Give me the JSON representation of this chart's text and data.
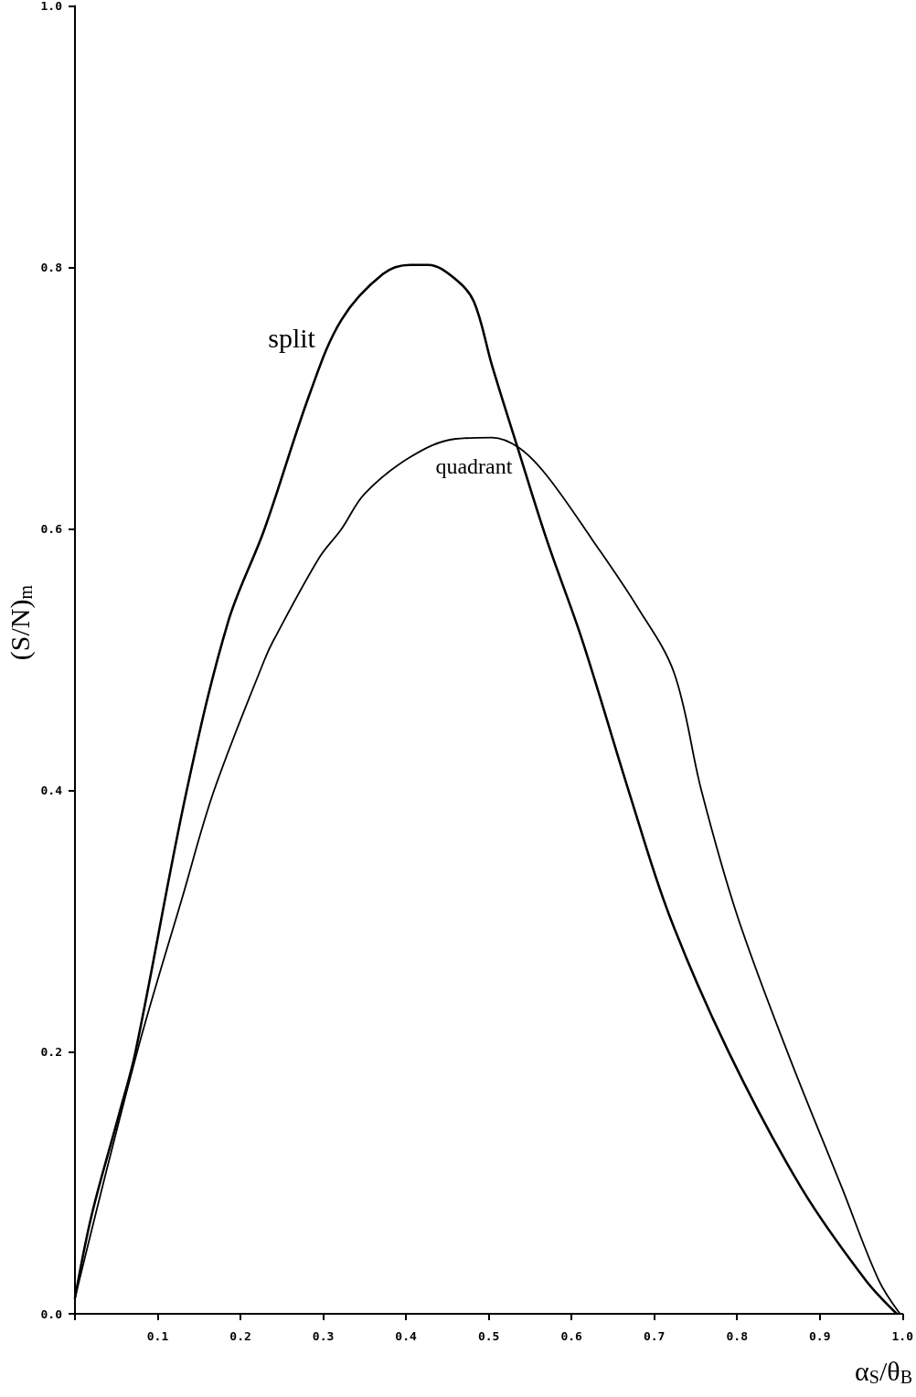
{
  "chart_data": {
    "type": "line",
    "xlabel": "α$_{S}$/θ$_{B}$",
    "ylabel": "(S/N)$_{m}$",
    "xlim": [
      0,
      1
    ],
    "ylim": [
      0,
      1
    ],
    "xticks": [
      {
        "value": 0,
        "label": null
      },
      {
        "value": 0.1,
        "label": "0.1"
      },
      {
        "value": 0.2,
        "label": "0.2"
      },
      {
        "value": 0.3,
        "label": "0.3"
      },
      {
        "value": 0.4,
        "label": "0.4"
      },
      {
        "value": 0.5,
        "label": "0.5"
      },
      {
        "value": 0.6,
        "label": "0.6"
      },
      {
        "value": 0.7,
        "label": "0.7"
      },
      {
        "value": 0.8,
        "label": "0.8"
      },
      {
        "value": 0.9,
        "label": "0.9"
      },
      {
        "value": 1,
        "label": "1.0"
      }
    ],
    "yticks": [
      {
        "value": 0,
        "label": "0.0"
      },
      {
        "value": 0.2,
        "label": "0.2"
      },
      {
        "value": 0.4,
        "label": "0.4"
      },
      {
        "value": 0.6,
        "label": "0.6"
      },
      {
        "value": 0.8,
        "label": "0.8"
      },
      {
        "value": 1,
        "label": "1.0"
      }
    ],
    "grid": false,
    "marker": "none",
    "line_style": "solid",
    "series": [
      {
        "name": "split",
        "color": "#000000",
        "x": [
          0,
          0.02,
          0.053,
          0.073,
          0.135,
          0.185,
          0.229,
          0.284,
          0.322,
          0.372,
          0.405,
          0.427,
          0.46,
          0.482,
          0.504,
          0.534,
          0.57,
          0.613,
          0.669,
          0.718,
          0.79,
          0.878,
          0.955,
          0.993
        ],
        "values": [
          0.012,
          0.075,
          0.152,
          0.2,
          0.4,
          0.529,
          0.6,
          0.704,
          0.76,
          0.795,
          0.802,
          0.802,
          0.791,
          0.774,
          0.725,
          0.664,
          0.592,
          0.515,
          0.4,
          0.305,
          0.2,
          0.096,
          0.026,
          0
        ]
      },
      {
        "name": "quadrant",
        "color": "#000000",
        "x": [
          0,
          0.075,
          0.13,
          0.168,
          0.229,
          0.24,
          0.295,
          0.322,
          0.35,
          0.405,
          0.46,
          0.504,
          0.537,
          0.57,
          0.625,
          0.68,
          0.724,
          0.757,
          0.8,
          0.861,
          0.927,
          0.971,
          0.997
        ],
        "values": [
          0.012,
          0.2,
          0.319,
          0.4,
          0.5,
          0.515,
          0.578,
          0.6,
          0.627,
          0.655,
          0.669,
          0.67,
          0.662,
          0.641,
          0.592,
          0.54,
          0.49,
          0.4,
          0.305,
          0.2,
          0.096,
          0.026,
          0
        ]
      }
    ]
  }
}
